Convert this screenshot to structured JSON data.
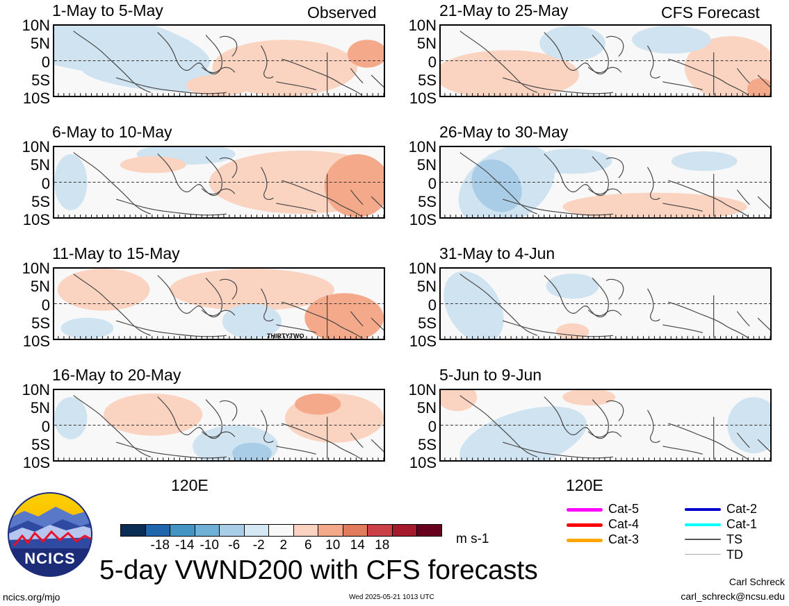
{
  "panels": [
    {
      "title": "1-May to 5-May",
      "corner": "Observed",
      "fields": [
        [
          "#cfe3f1",
          8,
          18,
          40,
          45,
          0.2
        ],
        [
          "#cfe3f1",
          30,
          70,
          22,
          22,
          0.1
        ],
        [
          "#fbd3c1",
          70,
          60,
          22,
          40,
          0
        ],
        [
          "#f3a98a",
          95,
          40,
          6,
          20,
          0
        ],
        [
          "#fbd3c1",
          50,
          85,
          10,
          15,
          0
        ]
      ]
    },
    {
      "title": "6-May to 10-May",
      "corner": "",
      "fields": [
        [
          "#fbd3c1",
          75,
          50,
          28,
          45,
          0
        ],
        [
          "#f3a98a",
          92,
          55,
          10,
          45,
          0
        ],
        [
          "#cfe3f1",
          5,
          50,
          5,
          40,
          0
        ],
        [
          "#cfe3f1",
          40,
          10,
          15,
          15,
          0
        ],
        [
          "#fbd3c1",
          30,
          25,
          10,
          12,
          0
        ]
      ]
    },
    {
      "title": "11-May to 15-May",
      "corner": "",
      "fields": [
        [
          "#fbd3c1",
          15,
          30,
          14,
          30,
          0
        ],
        [
          "#fbd3c1",
          60,
          30,
          25,
          30,
          0
        ],
        [
          "#f3a98a",
          88,
          70,
          12,
          35,
          0
        ],
        [
          "#cfe3f1",
          60,
          75,
          9,
          25,
          0
        ],
        [
          "#cfe3f1",
          10,
          85,
          8,
          15,
          0
        ]
      ]
    },
    {
      "title": "16-May to 20-May",
      "corner": "",
      "fields": [
        [
          "#fbd3c1",
          30,
          35,
          15,
          30,
          0
        ],
        [
          "#fbd3c1",
          85,
          40,
          15,
          35,
          0
        ],
        [
          "#f3a98a",
          80,
          20,
          7,
          15,
          0
        ],
        [
          "#cfe3f1",
          55,
          80,
          13,
          30,
          0
        ],
        [
          "#a9cde6",
          60,
          90,
          6,
          15,
          0
        ],
        [
          "#cfe3f1",
          5,
          40,
          5,
          30,
          0
        ]
      ]
    },
    {
      "title": "21-May to 25-May",
      "corner": "CFS Forecast",
      "fields": [
        [
          "#fbd3c1",
          20,
          70,
          22,
          35,
          0
        ],
        [
          "#fbd3c1",
          88,
          60,
          14,
          45,
          0
        ],
        [
          "#f3a98a",
          97,
          90,
          4,
          15,
          0
        ],
        [
          "#cfe3f1",
          40,
          25,
          10,
          25,
          0
        ],
        [
          "#cfe3f1",
          70,
          20,
          12,
          20,
          0
        ]
      ]
    },
    {
      "title": "26-May to 30-May",
      "corner": "",
      "fields": [
        [
          "#cfe3f1",
          20,
          55,
          16,
          50,
          -0.6
        ],
        [
          "#a9cde6",
          17,
          55,
          7,
          40,
          -0.6
        ],
        [
          "#fbd3c1",
          65,
          85,
          28,
          20,
          0
        ],
        [
          "#cfe3f1",
          40,
          20,
          12,
          18,
          0
        ],
        [
          "#cfe3f1",
          80,
          20,
          10,
          14,
          0
        ]
      ]
    },
    {
      "title": "31-May to 4-Jun",
      "corner": "",
      "fields": [
        [
          "#cfe3f1",
          10,
          55,
          8,
          55,
          -0.5
        ],
        [
          "#fbd3c1",
          40,
          90,
          5,
          12,
          0
        ],
        [
          "#cfe3f1",
          40,
          25,
          8,
          18,
          0
        ]
      ]
    },
    {
      "title": "5-Jun to 9-Jun",
      "corner": "",
      "fields": [
        [
          "#cfe3f1",
          25,
          70,
          20,
          40,
          -0.3
        ],
        [
          "#cfe3f1",
          95,
          50,
          8,
          40,
          0
        ],
        [
          "#fbd3c1",
          5,
          10,
          6,
          20,
          0
        ],
        [
          "#fbd3c1",
          45,
          10,
          8,
          12,
          0
        ]
      ]
    }
  ],
  "yticks": [
    "10N",
    "5N",
    "0",
    "5S",
    "10S"
  ],
  "xlabel": "120E",
  "annotation": "THIRTYTWO",
  "colorbar": {
    "colors": [
      "#0b2d54",
      "#2166ac",
      "#4393c3",
      "#6fb0d6",
      "#a9cde6",
      "#d6e8f3",
      "#f8f8f8",
      "#fbd3c1",
      "#f3a98a",
      "#e07b5e",
      "#c94147",
      "#a51a2c",
      "#67001f"
    ],
    "labels": [
      "-18",
      "-14",
      "-10",
      "-6",
      "-2",
      "2",
      "6",
      "10",
      "14",
      "18"
    ],
    "units": "m s-1"
  },
  "legend": [
    {
      "label": "Cat-5",
      "color": "#ff00ff",
      "weight": 5
    },
    {
      "label": "Cat-4",
      "color": "#ff0000",
      "weight": 5
    },
    {
      "label": "Cat-3",
      "color": "#ffa500",
      "weight": 5
    },
    {
      "label": "Cat-2",
      "color": "#0000cc",
      "weight": 4
    },
    {
      "label": "Cat-1",
      "color": "#00ffff",
      "weight": 4
    },
    {
      "label": "TS",
      "color": "#555555",
      "weight": 2
    },
    {
      "label": "TD",
      "color": "#aaaaaa",
      "weight": 1
    }
  ],
  "logo_text": "NCICS",
  "main_title": "5-day VWND200 with CFS forecasts",
  "footer": {
    "url": "ncics.org/mjo",
    "timestamp": "Wed 2025-05-21 1013 UTC",
    "author": "Carl Schreck",
    "email": "carl_schreck@ncsu.edu"
  }
}
